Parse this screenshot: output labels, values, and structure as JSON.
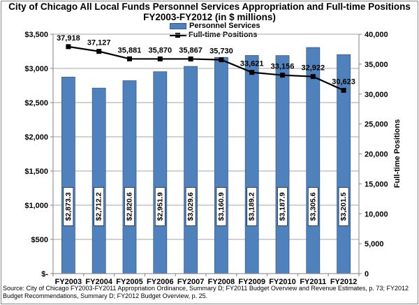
{
  "chart_data": {
    "type": "bar+line",
    "title": "City of Chicago All Local Funds Personnel Services Appropriation and Full-time Positions",
    "subtitle": "FY2003-FY2012 (in $ millions)",
    "categories": [
      "FY2003",
      "FY2004",
      "FY2005",
      "FY2006",
      "FY2007",
      "FY2008",
      "FY2009",
      "FY2010",
      "FY2011",
      "FY2012"
    ],
    "series": [
      {
        "name": "Personnel Services",
        "kind": "bar",
        "axis": "left",
        "values": [
          2873.3,
          2712.2,
          2820.6,
          2951.9,
          3029.6,
          3160.9,
          3189.2,
          3187.9,
          3305.6,
          3201.5
        ],
        "labels": [
          "$2,873.3",
          "$2,712.2",
          "$2,820.6",
          "$2,951.9",
          "$3,029.6",
          "$3,160.9",
          "$3,189.2",
          "$3,187.9",
          "$3,305.6",
          "$3,201.5"
        ]
      },
      {
        "name": "Full-time Positions",
        "kind": "line",
        "axis": "right",
        "values": [
          37918,
          37127,
          35881,
          35870,
          35867,
          35730,
          33621,
          33156,
          32922,
          30623
        ],
        "labels": [
          "37,918",
          "37,127",
          "35,881",
          "35,870",
          "35,867",
          "35,730",
          "33,621",
          "33,156",
          "32,922",
          "30,623"
        ]
      }
    ],
    "ylim": [
      0,
      3500
    ],
    "y_ticks": [
      0,
      500,
      1000,
      1500,
      2000,
      2500,
      3000,
      3500
    ],
    "y_tick_labels": [
      "$-",
      "$500",
      "$1,000",
      "$1,500",
      "$2,000",
      "$2,500",
      "$3,000",
      "$3,500"
    ],
    "y2lim": [
      0,
      40000
    ],
    "y2_ticks": [
      0,
      5000,
      10000,
      15000,
      20000,
      25000,
      30000,
      35000,
      40000
    ],
    "y2_tick_labels": [
      "0",
      "5,000",
      "10,000",
      "15,000",
      "20,000",
      "25,000",
      "30,000",
      "35,000",
      "40,000"
    ],
    "ylabel": "",
    "y2label": "Full-time Positions",
    "grid": true,
    "legend": "top-center",
    "colors": {
      "bar": "#4f81bd",
      "bar_edge": "#385d8a",
      "line": "#000000",
      "grid": "#a6a6a6"
    }
  },
  "source": "Source: City of Chicago FY2003-FY2011 Appropriation Ordinance, Summary D; FY2011 Budget Overview and Revenue Estimates, p. 73; FY2012 Budget Recommendations, Summary D; FY2012 Budget Overview, p. 25."
}
